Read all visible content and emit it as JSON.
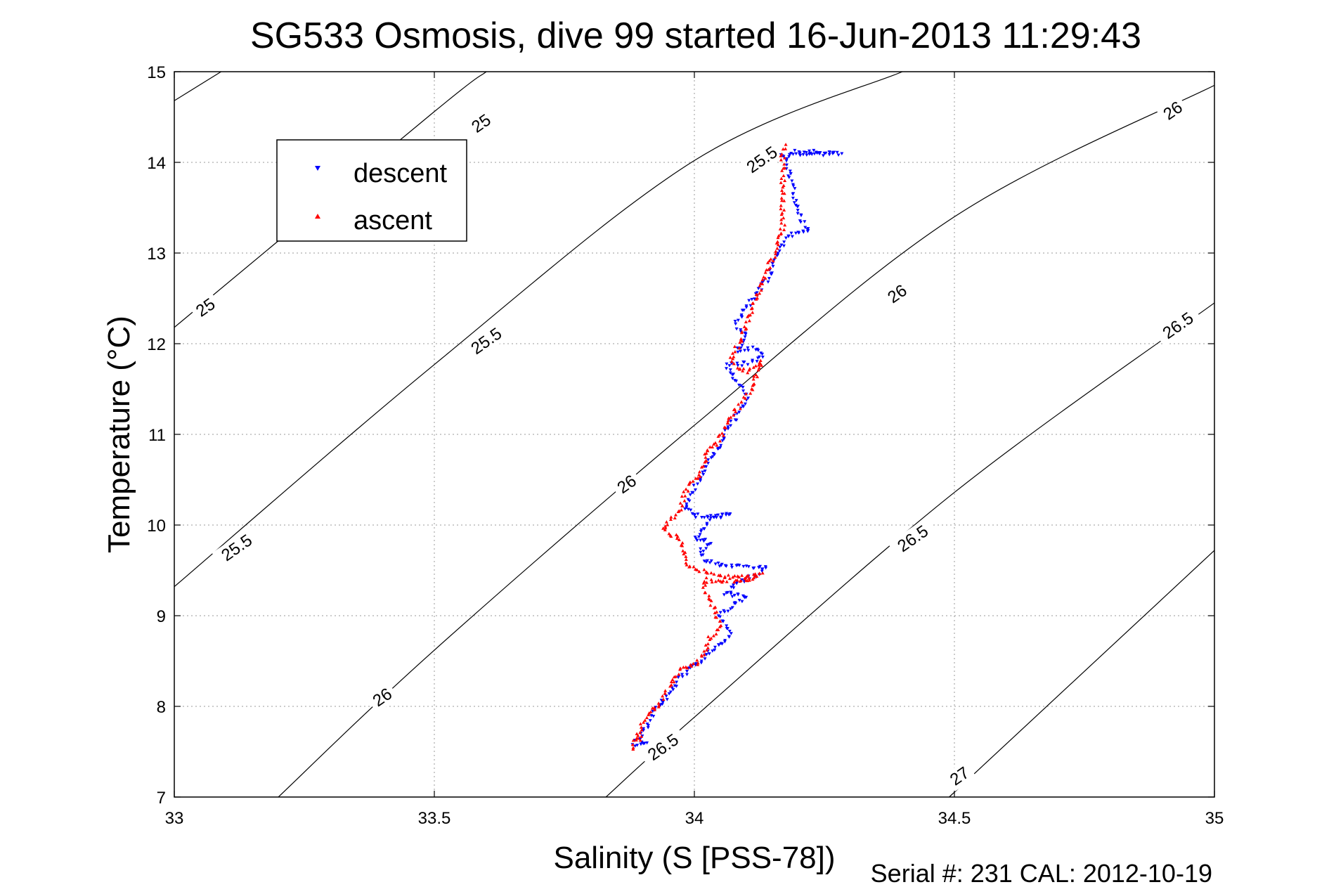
{
  "chart_data": {
    "type": "scatter",
    "title": "SG533 Osmosis, dive 99 started 16-Jun-2013 11:29:43",
    "xlabel": "Salinity (S [PSS-78])",
    "ylabel": "Temperature (°C)",
    "xlim": [
      33,
      35
    ],
    "ylim": [
      7,
      15
    ],
    "xticks": [
      "33",
      "33.5",
      "34",
      "34.5",
      "35"
    ],
    "yticks": [
      "7",
      "8",
      "9",
      "10",
      "11",
      "12",
      "13",
      "14",
      "15"
    ],
    "grid": true,
    "legend_position": "top-left",
    "footer": "Serial #: 231  CAL: 2012-10-19",
    "contours": [
      {
        "label": "25",
        "points": [
          [
            33,
            14.68
          ],
          [
            33.09,
            15.0
          ]
        ]
      },
      {
        "label": "25",
        "points": [
          [
            33,
            12.18
          ],
          [
            33.5,
            14.56
          ],
          [
            33.6,
            15.0
          ]
        ]
      },
      {
        "label": "25.5",
        "points": [
          [
            33,
            9.32
          ],
          [
            33.5,
            11.77
          ],
          [
            34,
            14.02
          ],
          [
            34.4,
            15.0
          ]
        ]
      },
      {
        "label": "26",
        "points": [
          [
            33.2,
            7.0
          ],
          [
            33.5,
            8.62
          ],
          [
            34,
            11.1
          ],
          [
            34.5,
            13.4
          ],
          [
            35,
            14.85
          ]
        ]
      },
      {
        "label": "26.5",
        "points": [
          [
            33.83,
            7.0
          ],
          [
            34,
            7.88
          ],
          [
            34.5,
            10.36
          ],
          [
            35,
            12.45
          ]
        ]
      },
      {
        "label": "27",
        "points": [
          [
            34.49,
            7.0
          ],
          [
            35,
            9.72
          ]
        ]
      }
    ],
    "contour_labels": [
      {
        "text": "25",
        "x": 33.59,
        "y": 14.43
      },
      {
        "text": "25",
        "x": 33.06,
        "y": 12.4
      },
      {
        "text": "25.5",
        "x": 33.12,
        "y": 9.75
      },
      {
        "text": "25.5",
        "x": 33.6,
        "y": 12.03
      },
      {
        "text": "25.5",
        "x": 34.13,
        "y": 14.03
      },
      {
        "text": "26",
        "x": 33.4,
        "y": 8.1
      },
      {
        "text": "26",
        "x": 33.87,
        "y": 10.45
      },
      {
        "text": "26",
        "x": 34.39,
        "y": 12.55
      },
      {
        "text": "26",
        "x": 34.92,
        "y": 14.57
      },
      {
        "text": "26.5",
        "x": 33.94,
        "y": 7.55
      },
      {
        "text": "26.5",
        "x": 34.42,
        "y": 9.85
      },
      {
        "text": "26.5",
        "x": 34.93,
        "y": 12.2
      },
      {
        "text": "27",
        "x": 34.51,
        "y": 7.23
      }
    ],
    "series": [
      {
        "name": "descent",
        "color": "#0000ff",
        "marker": "triangle-down",
        "path": [
          [
            34.19,
            14.12
          ],
          [
            34.28,
            14.1
          ],
          [
            34.17,
            14.08
          ],
          [
            34.18,
            13.95
          ],
          [
            34.19,
            13.7
          ],
          [
            34.2,
            13.5
          ],
          [
            34.21,
            13.3
          ],
          [
            34.22,
            13.25
          ],
          [
            34.18,
            13.2
          ],
          [
            34.16,
            13.0
          ],
          [
            34.15,
            12.85
          ],
          [
            34.14,
            12.7
          ],
          [
            34.12,
            12.55
          ],
          [
            34.1,
            12.4
          ],
          [
            34.09,
            12.3
          ],
          [
            34.08,
            12.2
          ],
          [
            34.1,
            12.1
          ],
          [
            34.09,
            12.0
          ],
          [
            34.08,
            11.93
          ],
          [
            34.12,
            11.95
          ],
          [
            34.13,
            11.85
          ],
          [
            34.1,
            11.78
          ],
          [
            34.06,
            11.76
          ],
          [
            34.08,
            11.6
          ],
          [
            34.09,
            11.5
          ],
          [
            34.1,
            11.4
          ],
          [
            34.09,
            11.3
          ],
          [
            34.08,
            11.2
          ],
          [
            34.07,
            11.1
          ],
          [
            34.06,
            11.0
          ],
          [
            34.05,
            10.9
          ],
          [
            34.04,
            10.8
          ],
          [
            34.03,
            10.7
          ],
          [
            34.02,
            10.6
          ],
          [
            34.01,
            10.5
          ],
          [
            34.0,
            10.4
          ],
          [
            33.99,
            10.3
          ],
          [
            33.98,
            10.2
          ],
          [
            34.0,
            10.1
          ],
          [
            34.05,
            10.1
          ],
          [
            34.07,
            10.13
          ],
          [
            34.03,
            10.05
          ],
          [
            34.02,
            9.95
          ],
          [
            34.0,
            9.85
          ],
          [
            34.03,
            9.8
          ],
          [
            34.01,
            9.7
          ],
          [
            34.02,
            9.6
          ],
          [
            34.06,
            9.55
          ],
          [
            34.1,
            9.55
          ],
          [
            34.14,
            9.53
          ],
          [
            34.12,
            9.45
          ],
          [
            34.08,
            9.35
          ],
          [
            34.06,
            9.25
          ],
          [
            34.1,
            9.2
          ],
          [
            34.07,
            9.1
          ],
          [
            34.05,
            9.0
          ],
          [
            34.06,
            8.9
          ],
          [
            34.07,
            8.8
          ],
          [
            34.05,
            8.7
          ],
          [
            34.03,
            8.6
          ],
          [
            34.01,
            8.5
          ],
          [
            33.99,
            8.4
          ],
          [
            33.97,
            8.3
          ],
          [
            33.96,
            8.2
          ],
          [
            33.95,
            8.1
          ],
          [
            33.93,
            8.0
          ],
          [
            33.92,
            7.9
          ],
          [
            33.91,
            7.8
          ],
          [
            33.9,
            7.7
          ],
          [
            33.89,
            7.62
          ],
          [
            33.91,
            7.6
          ],
          [
            33.88,
            7.55
          ]
        ]
      },
      {
        "name": "ascent",
        "color": "#ff0000",
        "marker": "triangle-up",
        "path": [
          [
            33.88,
            7.53
          ],
          [
            33.88,
            7.62
          ],
          [
            33.9,
            7.63
          ],
          [
            33.89,
            7.7
          ],
          [
            33.9,
            7.8
          ],
          [
            33.91,
            7.9
          ],
          [
            33.93,
            8.0
          ],
          [
            33.95,
            8.2
          ],
          [
            33.97,
            8.4
          ],
          [
            34.0,
            8.45
          ],
          [
            34.02,
            8.6
          ],
          [
            34.03,
            8.75
          ],
          [
            34.05,
            8.9
          ],
          [
            34.04,
            9.05
          ],
          [
            34.03,
            9.2
          ],
          [
            34.02,
            9.3
          ],
          [
            34.02,
            9.4
          ],
          [
            34.05,
            9.38
          ],
          [
            34.1,
            9.4
          ],
          [
            34.13,
            9.45
          ],
          [
            34.07,
            9.42
          ],
          [
            34.02,
            9.48
          ],
          [
            33.99,
            9.55
          ],
          [
            33.98,
            9.7
          ],
          [
            33.97,
            9.85
          ],
          [
            33.94,
            9.95
          ],
          [
            33.95,
            10.05
          ],
          [
            33.97,
            10.15
          ],
          [
            33.98,
            10.3
          ],
          [
            33.99,
            10.45
          ],
          [
            34.01,
            10.55
          ],
          [
            34.02,
            10.7
          ],
          [
            34.02,
            10.8
          ],
          [
            34.04,
            10.9
          ],
          [
            34.06,
            11.05
          ],
          [
            34.07,
            11.2
          ],
          [
            34.09,
            11.35
          ],
          [
            34.11,
            11.5
          ],
          [
            34.12,
            11.65
          ],
          [
            34.13,
            11.8
          ],
          [
            34.1,
            11.7
          ],
          [
            34.08,
            11.75
          ],
          [
            34.07,
            11.85
          ],
          [
            34.08,
            11.95
          ],
          [
            34.09,
            12.05
          ],
          [
            34.1,
            12.2
          ],
          [
            34.11,
            12.35
          ],
          [
            34.12,
            12.5
          ],
          [
            34.13,
            12.65
          ],
          [
            34.14,
            12.8
          ],
          [
            34.15,
            12.95
          ],
          [
            34.16,
            13.1
          ],
          [
            34.17,
            13.3
          ],
          [
            34.17,
            13.5
          ],
          [
            34.17,
            13.7
          ],
          [
            34.17,
            13.9
          ],
          [
            34.17,
            14.1
          ],
          [
            34.18,
            14.2
          ]
        ]
      }
    ]
  }
}
